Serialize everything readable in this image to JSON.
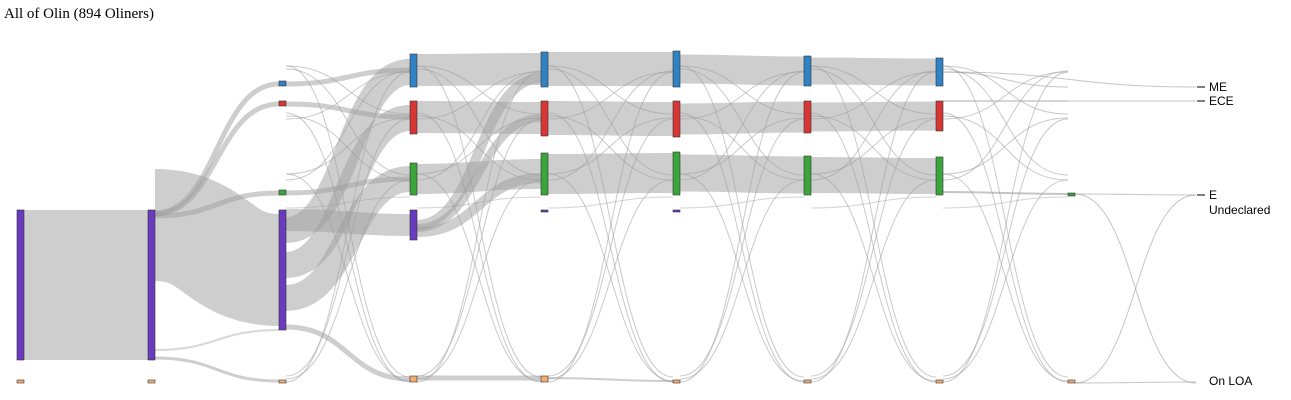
{
  "header": {
    "title": "All of Olin (894 Oliners)"
  },
  "labels": {
    "me": "ME",
    "ece": "ECE",
    "e": "E",
    "undeclared": "Undeclared",
    "loa": "On LOA"
  },
  "colors": {
    "ME": "#2f82c4",
    "ECE": "#d83535",
    "E": "#3aa53a",
    "Undeclared": "#6a3bbf",
    "LOA": "#f5ae72",
    "link": "#9e9e9e"
  },
  "diagram": {
    "columns": 9,
    "categories": [
      "ME",
      "ECE",
      "E",
      "Undeclared",
      "LOA"
    ]
  }
}
